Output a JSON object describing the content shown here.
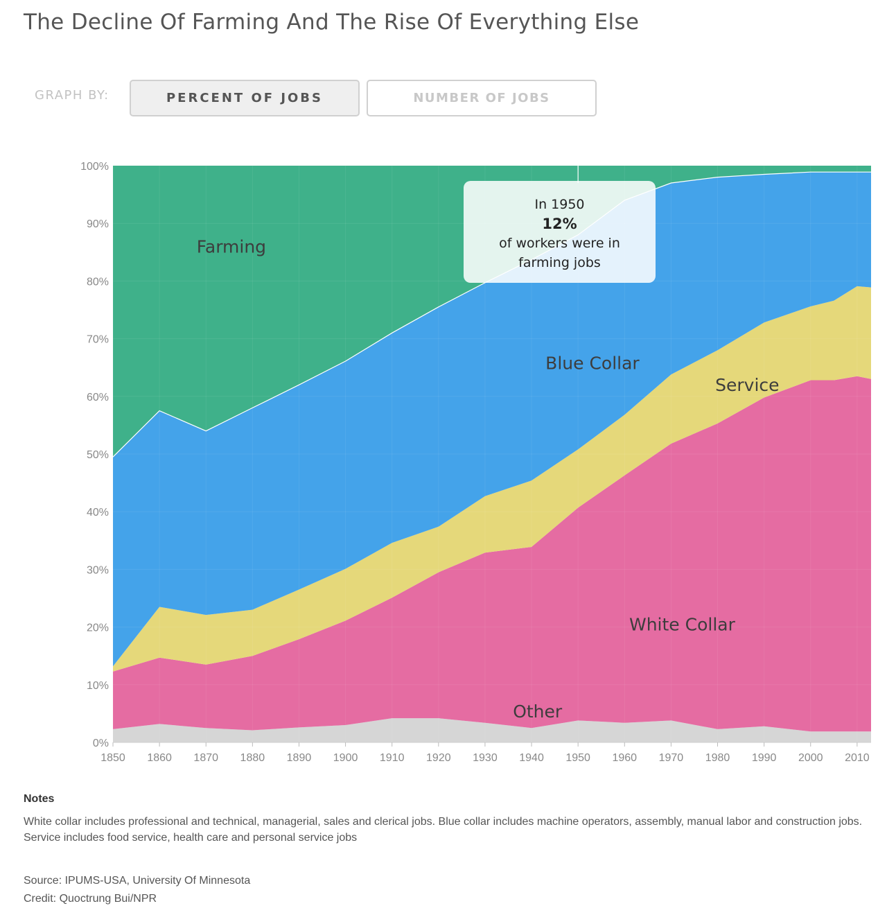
{
  "title": "The Decline Of Farming And The Rise Of Everything Else",
  "controls": {
    "label": "GRAPH BY:",
    "options": [
      "PERCENT OF JOBS",
      "NUMBER OF JOBS"
    ],
    "selected": "PERCENT OF JOBS"
  },
  "callout": {
    "line1": "In 1950",
    "value": "12%",
    "line3": "of workers were in",
    "line4": "farming jobs",
    "year": 1950
  },
  "chart_data": {
    "type": "area",
    "stacked": true,
    "x": [
      1850,
      1860,
      1870,
      1880,
      1890,
      1900,
      1910,
      1920,
      1930,
      1940,
      1950,
      1960,
      1970,
      1980,
      1990,
      2000,
      2005,
      2010,
      2013
    ],
    "xticks": [
      "1850",
      "1860",
      "1870",
      "1880",
      "1890",
      "1900",
      "1910",
      "1920",
      "1930",
      "1940",
      "1950",
      "1960",
      "1970",
      "1980",
      "1990",
      "2000",
      "2010"
    ],
    "yticks": [
      "0%",
      "10%",
      "20%",
      "30%",
      "40%",
      "50%",
      "60%",
      "70%",
      "80%",
      "90%",
      "100%"
    ],
    "ylim": [
      0,
      100
    ],
    "series": [
      {
        "name": "Other",
        "color": "#d6d6d6",
        "values": [
          2.3,
          3.2,
          2.5,
          2.1,
          2.6,
          3.0,
          4.2,
          4.2,
          3.4,
          2.5,
          3.8,
          3.4,
          3.8,
          2.3,
          2.8,
          1.9,
          1.9,
          1.9,
          1.9
        ]
      },
      {
        "name": "White Collar",
        "color": "#e56ca2",
        "values": [
          10.0,
          11.5,
          11.0,
          12.9,
          15.3,
          18.1,
          20.9,
          25.3,
          29.5,
          31.4,
          36.9,
          42.9,
          48.0,
          53.0,
          57.0,
          60.9,
          60.9,
          61.6,
          61.1
        ]
      },
      {
        "name": "Service",
        "color": "#e5d87a",
        "values": [
          0.9,
          8.8,
          8.6,
          8.0,
          8.6,
          9.0,
          9.5,
          7.9,
          9.8,
          11.5,
          10.1,
          10.5,
          12.0,
          12.7,
          13.0,
          12.8,
          13.8,
          15.6,
          15.9
        ]
      },
      {
        "name": "Blue Collar",
        "color": "#44a3ea",
        "values": [
          36.3,
          34.0,
          31.9,
          35.0,
          35.5,
          36.0,
          36.4,
          38.1,
          37.0,
          38.3,
          37.2,
          37.2,
          33.2,
          30.0,
          25.7,
          23.3,
          22.3,
          19.8,
          20.0
        ]
      },
      {
        "name": "Farming",
        "color": "#3fb18a",
        "values": [
          50.5,
          42.5,
          46.0,
          42.0,
          38.0,
          33.9,
          29.0,
          24.5,
          20.3,
          16.3,
          12.0,
          6.0,
          3.0,
          2.0,
          1.5,
          1.1,
          1.1,
          1.1,
          1.1
        ]
      }
    ],
    "labels": [
      "Farming",
      "Blue Collar",
      "Service",
      "White Collar",
      "Other"
    ]
  },
  "notes": {
    "heading": "Notes",
    "text": "White collar includes professional and technical, managerial, sales and clerical jobs. Blue collar includes machine operators, assembly, manual labor and construction jobs. Service includes food service, health care and personal service jobs"
  },
  "source": "Source: IPUMS-USA, University Of Minnesota",
  "credit": "Credit: Quoctrung Bui/NPR"
}
